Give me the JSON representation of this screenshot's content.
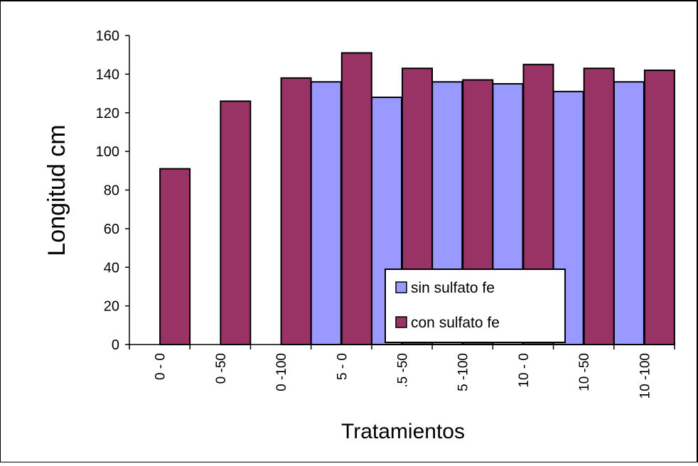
{
  "chart_data": {
    "type": "bar",
    "title": "",
    "xlabel": "Tratamientos",
    "ylabel": "Longitud cm",
    "ylim": [
      0,
      160
    ],
    "yticks": [
      0,
      20,
      40,
      60,
      80,
      100,
      120,
      140,
      160
    ],
    "categories": [
      "0 - 0",
      "0 -50",
      "0 -100",
      "5 - 0",
      ".5 -50",
      "5 -100",
      "10 - 0",
      "10 -50",
      "10 -100"
    ],
    "series": [
      {
        "name": "sin sulfato fe",
        "color": "#9999ff",
        "values": [
          null,
          null,
          null,
          136,
          128,
          136,
          135,
          131,
          136
        ]
      },
      {
        "name": "con sulfato fe",
        "color": "#993366",
        "values": [
          91,
          126,
          138,
          151,
          143,
          137,
          145,
          143,
          142
        ]
      }
    ],
    "legend_position": "bottom-center",
    "grid": false
  }
}
